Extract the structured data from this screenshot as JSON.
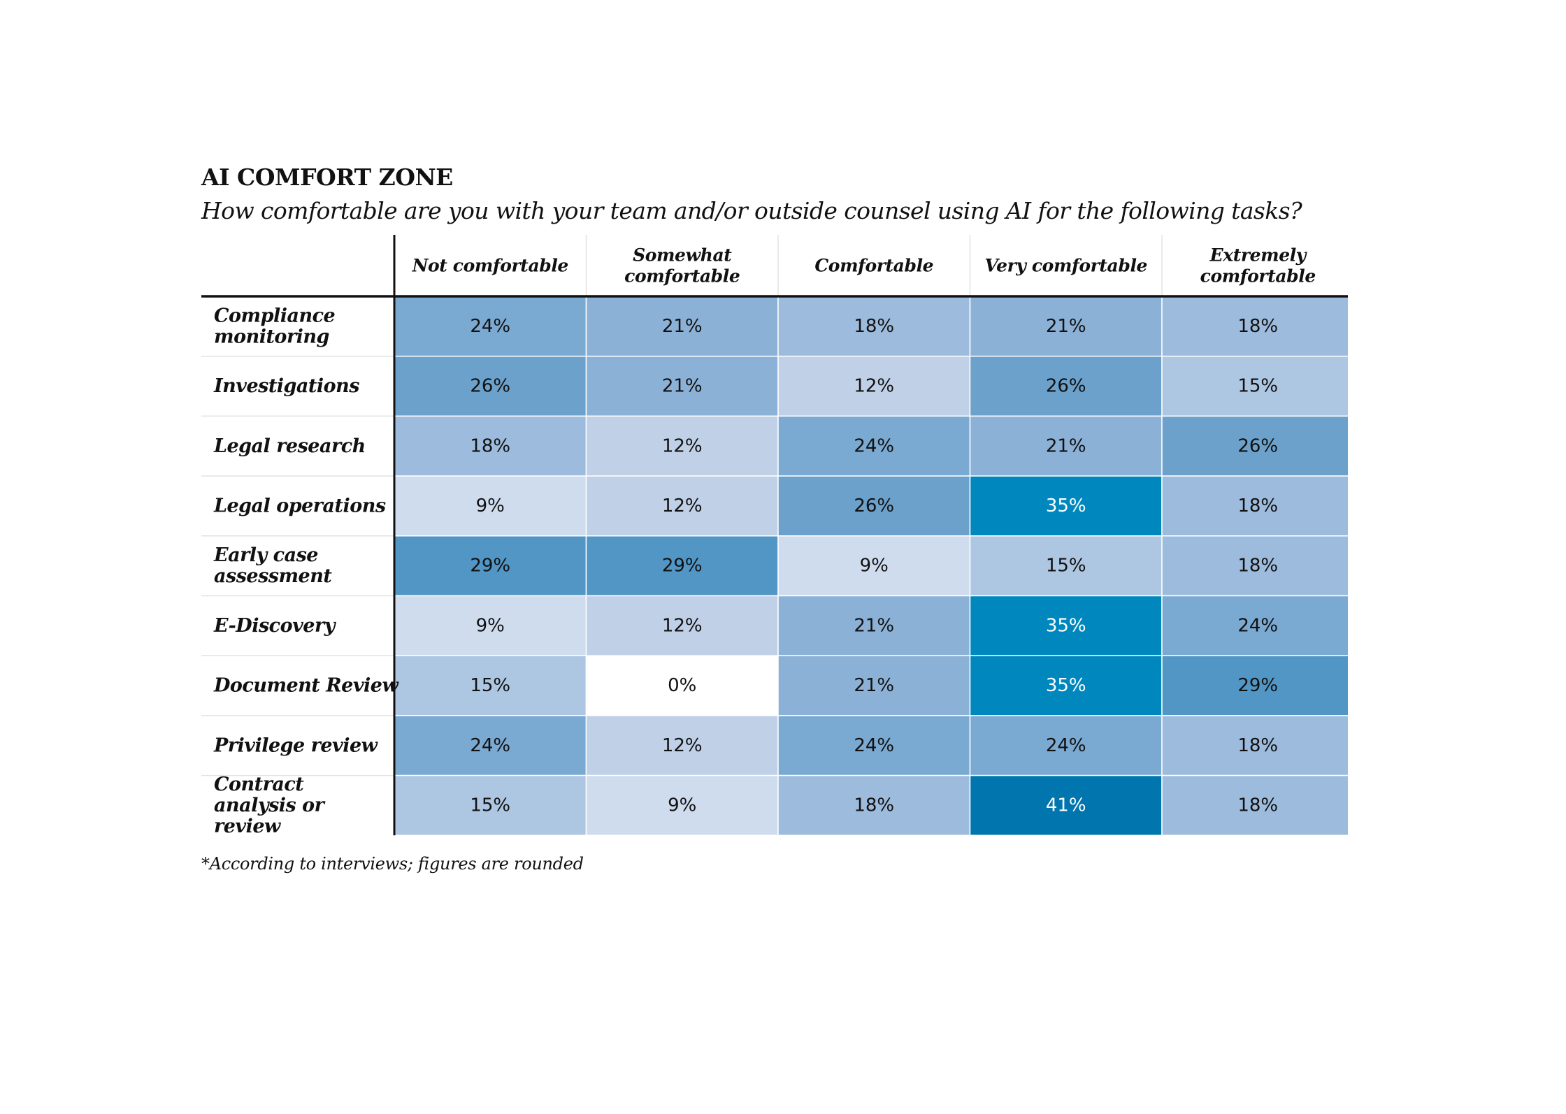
{
  "chart_data": {
    "type": "heatmap",
    "title": "AI COMFORT ZONE",
    "subtitle": "How comfortable are you with your team and/or outside counsel using AI for the following tasks?",
    "columns": [
      "Not comfortable",
      "Somewhat comfortable",
      "Comfortable",
      "Very comfortable",
      "Extremely comfortable"
    ],
    "rows": [
      "Compliance monitoring",
      "Investigations",
      "Legal research",
      "Legal operations",
      "Early case assessment",
      "E-Discovery",
      "Document Review",
      "Privilege review",
      "Contract analysis or review"
    ],
    "values": [
      [
        24,
        21,
        18,
        21,
        18
      ],
      [
        26,
        21,
        12,
        26,
        15
      ],
      [
        18,
        12,
        24,
        21,
        26
      ],
      [
        9,
        12,
        26,
        35,
        18
      ],
      [
        29,
        29,
        9,
        15,
        18
      ],
      [
        9,
        12,
        21,
        35,
        24
      ],
      [
        15,
        0,
        21,
        35,
        29
      ],
      [
        24,
        12,
        24,
        24,
        18
      ],
      [
        15,
        9,
        18,
        41,
        18
      ]
    ],
    "unit": "%",
    "value_format": "{v}%",
    "color_scale": {
      "stops": [
        {
          "value": 0,
          "color": "#ffffff"
        },
        {
          "value": 9,
          "color": "#cfdcee"
        },
        {
          "value": 12,
          "color": "#bfd0e7"
        },
        {
          "value": 15,
          "color": "#adc6e2"
        },
        {
          "value": 18,
          "color": "#9dbbdc"
        },
        {
          "value": 21,
          "color": "#8cb1d7"
        },
        {
          "value": 24,
          "color": "#7aa9d1"
        },
        {
          "value": 26,
          "color": "#6ba1cb"
        },
        {
          "value": 29,
          "color": "#5296c5"
        },
        {
          "value": 35,
          "color": "#0088be"
        },
        {
          "value": 41,
          "color": "#0075ae"
        }
      ],
      "light_text_threshold": 35,
      "dark_text_color": "#111111",
      "light_text_color": "#ffffff"
    },
    "footnote": "*According to interviews; figures are rounded"
  }
}
